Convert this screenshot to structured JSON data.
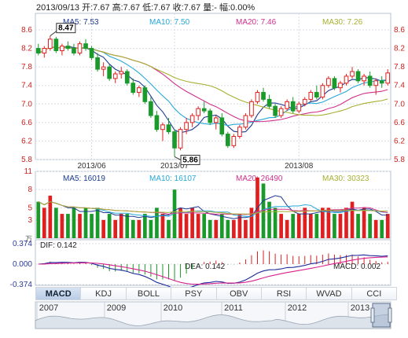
{
  "header": {
    "quote_line": "2013/09/13 开:7.67 高:7.67 低:7.67 收:7.67 量:- 幅:0.00%"
  },
  "colors": {
    "up": "#e02020",
    "down": "#1a9a2a",
    "ma5": "#1d3a8f",
    "ma10": "#27a8d8",
    "ma20": "#d0308c",
    "ma30": "#a8b030",
    "grid": "#d7dde5",
    "price_axis_text": "#cc2222",
    "vol_axis_text": "#cc2222"
  },
  "price_panel": {
    "legend": [
      {
        "label": "MA5: 7.53",
        "color": "#1d3a8f"
      },
      {
        "label": "MA10: 7.50",
        "color": "#27a8d8"
      },
      {
        "label": "MA20: 7.46",
        "color": "#d0308c"
      },
      {
        "label": "MA30: 7.26",
        "color": "#a8b030"
      }
    ],
    "y_ticks": [
      "8.6",
      "8.2",
      "7.8",
      "7.4",
      "7.0",
      "6.6",
      "6.2",
      "5.8"
    ],
    "x_ticks": [
      "2013/06",
      "2013/07",
      "2013/08"
    ],
    "high_marker": "8.47",
    "low_marker": "5.86"
  },
  "volume_panel": {
    "legend": [
      {
        "label": "MA5: 16019",
        "color": "#1d3a8f"
      },
      {
        "label": "MA10: 16107",
        "color": "#27a8d8"
      },
      {
        "label": "MA20: 26490",
        "color": "#d0308c"
      },
      {
        "label": "MA30: 30323",
        "color": "#a8b030"
      }
    ],
    "y_ticks": [
      "11",
      "8",
      "5",
      "3"
    ],
    "unit": "万"
  },
  "macd_panel": {
    "dif_label": "DIF: 0.142",
    "dea_label": "DEA: 0.142",
    "macd_label": "MACD: 0.002",
    "y_ticks": [
      "0.374",
      "0.000",
      "-0.374"
    ]
  },
  "tabs": [
    "MACD",
    "KDJ",
    "BOLL",
    "PSY",
    "OBV",
    "RSI",
    "WVAD",
    "CCI"
  ],
  "active_tab": "MACD",
  "overview": {
    "years": [
      "2007",
      "2009",
      "2010",
      "2011",
      "2012",
      "2013"
    ]
  },
  "chart_data": {
    "type": "candlestick",
    "ylim": [
      5.8,
      8.6
    ],
    "dates_labeled": [
      "2013/06",
      "2013/07",
      "2013/08"
    ],
    "ohlc": [
      [
        8.2,
        8.3,
        8.05,
        8.1
      ],
      [
        8.1,
        8.25,
        8.0,
        8.2
      ],
      [
        8.2,
        8.47,
        8.15,
        8.4
      ],
      [
        8.4,
        8.45,
        8.1,
        8.15
      ],
      [
        8.15,
        8.3,
        8.05,
        8.25
      ],
      [
        8.25,
        8.35,
        8.15,
        8.2
      ],
      [
        8.2,
        8.3,
        8.05,
        8.1
      ],
      [
        8.1,
        8.35,
        8.05,
        8.3
      ],
      [
        8.3,
        8.4,
        8.15,
        8.2
      ],
      [
        8.2,
        8.25,
        7.95,
        8.0
      ],
      [
        8.0,
        8.1,
        7.7,
        7.75
      ],
      [
        7.75,
        7.9,
        7.6,
        7.8
      ],
      [
        7.8,
        7.85,
        7.5,
        7.55
      ],
      [
        7.55,
        7.7,
        7.45,
        7.65
      ],
      [
        7.65,
        7.8,
        7.55,
        7.7
      ],
      [
        7.7,
        7.75,
        7.4,
        7.45
      ],
      [
        7.45,
        7.55,
        7.2,
        7.25
      ],
      [
        7.25,
        7.4,
        7.15,
        7.35
      ],
      [
        7.35,
        7.4,
        7.0,
        7.05
      ],
      [
        7.05,
        7.15,
        6.7,
        6.75
      ],
      [
        6.75,
        6.85,
        6.4,
        6.45
      ],
      [
        6.45,
        6.6,
        6.2,
        6.55
      ],
      [
        6.55,
        6.7,
        6.35,
        6.4
      ],
      [
        6.4,
        6.45,
        5.86,
        6.05
      ],
      [
        6.05,
        6.5,
        6.0,
        6.45
      ],
      [
        6.45,
        6.7,
        6.35,
        6.6
      ],
      [
        6.6,
        6.8,
        6.5,
        6.75
      ],
      [
        6.75,
        6.95,
        6.65,
        6.9
      ],
      [
        6.9,
        7.05,
        6.8,
        6.85
      ],
      [
        6.85,
        6.9,
        6.55,
        6.6
      ],
      [
        6.6,
        6.75,
        6.45,
        6.7
      ],
      [
        6.7,
        6.8,
        6.3,
        6.35
      ],
      [
        6.35,
        6.4,
        6.05,
        6.1
      ],
      [
        6.1,
        6.35,
        6.05,
        6.3
      ],
      [
        6.3,
        6.55,
        6.25,
        6.5
      ],
      [
        6.5,
        6.8,
        6.45,
        6.75
      ],
      [
        6.75,
        7.1,
        6.7,
        7.05
      ],
      [
        7.05,
        7.3,
        7.0,
        7.25
      ],
      [
        7.25,
        7.35,
        7.05,
        7.1
      ],
      [
        7.1,
        7.2,
        6.9,
        6.95
      ],
      [
        6.95,
        7.0,
        6.7,
        6.75
      ],
      [
        6.75,
        6.95,
        6.7,
        6.9
      ],
      [
        6.9,
        7.1,
        6.85,
        7.05
      ],
      [
        7.05,
        7.15,
        6.8,
        6.85
      ],
      [
        6.85,
        7.05,
        6.8,
        7.0
      ],
      [
        7.0,
        7.15,
        6.95,
        7.1
      ],
      [
        7.1,
        7.3,
        7.05,
        7.25
      ],
      [
        7.25,
        7.4,
        7.1,
        7.15
      ],
      [
        7.15,
        7.45,
        7.1,
        7.4
      ],
      [
        7.4,
        7.6,
        7.35,
        7.55
      ],
      [
        7.55,
        7.6,
        7.3,
        7.35
      ],
      [
        7.35,
        7.5,
        7.25,
        7.45
      ],
      [
        7.45,
        7.65,
        7.4,
        7.6
      ],
      [
        7.6,
        7.8,
        7.55,
        7.7
      ],
      [
        7.7,
        7.75,
        7.45,
        7.5
      ],
      [
        7.5,
        7.65,
        7.4,
        7.6
      ],
      [
        7.6,
        7.7,
        7.35,
        7.4
      ],
      [
        7.4,
        7.55,
        7.2,
        7.5
      ],
      [
        7.5,
        7.6,
        7.35,
        7.45
      ],
      [
        7.45,
        7.75,
        7.4,
        7.67
      ]
    ],
    "volume": [
      6,
      5,
      7,
      5,
      4,
      4,
      5,
      4,
      5,
      4,
      5,
      3,
      4,
      3,
      4,
      4,
      3,
      3,
      4,
      3,
      5,
      4,
      3,
      8,
      5,
      4,
      5,
      4,
      4,
      3,
      3,
      4,
      3,
      3,
      4,
      3,
      5,
      10,
      9,
      6,
      5,
      4,
      3,
      4,
      4,
      5,
      4,
      4,
      5,
      5,
      4,
      4,
      5,
      6,
      4,
      5,
      4,
      3,
      3,
      4
    ]
  }
}
